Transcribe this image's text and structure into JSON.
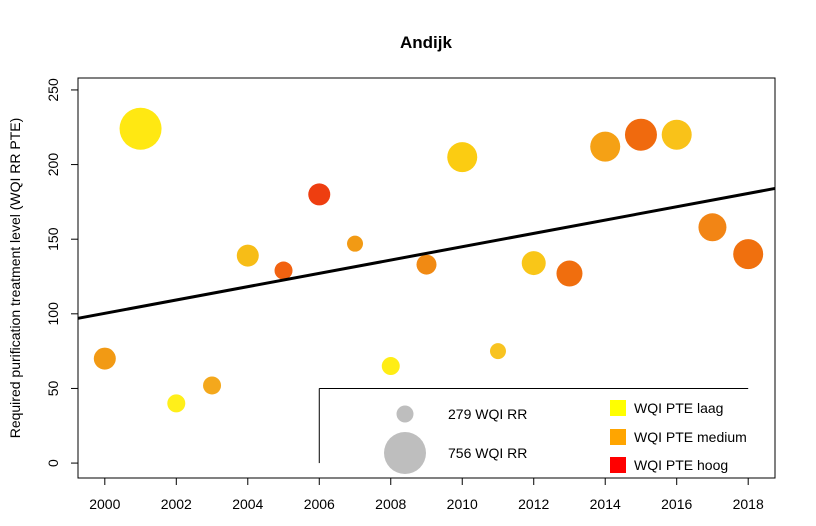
{
  "chart_data": {
    "type": "scatter",
    "title": "Andijk",
    "xlabel": "",
    "ylabel": "Required purification treatment level (WQI RR PTE)",
    "xlim": [
      1999.25,
      2018.75
    ],
    "ylim": [
      -10,
      258
    ],
    "x_ticks": [
      2000,
      2002,
      2004,
      2006,
      2008,
      2010,
      2012,
      2014,
      2016,
      2018
    ],
    "x_tick_labels": [
      "2000",
      "2002",
      "2004",
      "2006",
      "2008",
      "2010",
      "2012",
      "2014",
      "2016",
      "2018"
    ],
    "y_ticks": [
      0,
      50,
      100,
      150,
      200,
      250
    ],
    "y_tick_labels": [
      "0",
      "50",
      "100",
      "150",
      "200",
      "250"
    ],
    "grid": false,
    "colors": {
      "laag": "#FFFF00",
      "medium": "#FFA500",
      "hoog": "#FF0000",
      "size_legend": "#BEBEBE",
      "trend": "#000000"
    },
    "points": [
      {
        "x": 2000,
        "y": 70,
        "color": "#F29A14",
        "size": 11
      },
      {
        "x": 2001,
        "y": 224,
        "color": "#FFE812",
        "size": 21
      },
      {
        "x": 2002,
        "y": 40,
        "color": "#FFEF1A",
        "size": 9
      },
      {
        "x": 2003,
        "y": 52,
        "color": "#F4A81C",
        "size": 9
      },
      {
        "x": 2004,
        "y": 139,
        "color": "#F7BD17",
        "size": 11
      },
      {
        "x": 2005,
        "y": 129,
        "color": "#F26210",
        "size": 9
      },
      {
        "x": 2006,
        "y": 180,
        "color": "#EE3E10",
        "size": 11
      },
      {
        "x": 2007,
        "y": 147,
        "color": "#F29A14",
        "size": 8
      },
      {
        "x": 2008,
        "y": 65,
        "color": "#FFED15",
        "size": 9
      },
      {
        "x": 2009,
        "y": 133,
        "color": "#F18A13",
        "size": 10
      },
      {
        "x": 2010,
        "y": 205,
        "color": "#FBCC12",
        "size": 15
      },
      {
        "x": 2011,
        "y": 75,
        "color": "#F8C320",
        "size": 8
      },
      {
        "x": 2012,
        "y": 134,
        "color": "#F9C618",
        "size": 12
      },
      {
        "x": 2013,
        "y": 127,
        "color": "#F06E0E",
        "size": 13
      },
      {
        "x": 2014,
        "y": 212,
        "color": "#F5A115",
        "size": 15
      },
      {
        "x": 2015,
        "y": 220,
        "color": "#F06A0E",
        "size": 16
      },
      {
        "x": 2016,
        "y": 220,
        "color": "#F9C219",
        "size": 15
      },
      {
        "x": 2017,
        "y": 158,
        "color": "#F28515",
        "size": 14
      },
      {
        "x": 2018,
        "y": 140,
        "color": "#F0700E",
        "size": 15
      }
    ],
    "trendline": {
      "x": [
        1999.25,
        2018.75
      ],
      "y": [
        97,
        184
      ]
    },
    "size_legend": [
      {
        "label": "279 WQI RR",
        "size": 8.5
      },
      {
        "label": "756 WQI RR",
        "size": 21
      }
    ],
    "color_legend": [
      {
        "label": "WQI PTE laag",
        "color": "#FFFF00"
      },
      {
        "label": "WQI PTE medium",
        "color": "#FFA500"
      },
      {
        "label": "WQI PTE hoog",
        "color": "#FF0000"
      }
    ]
  }
}
